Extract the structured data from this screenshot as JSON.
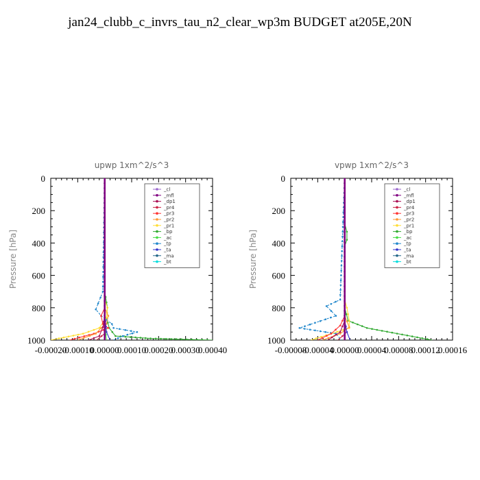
{
  "title": "jan24_clubb_c_invrs_tau_n2_clear_wp3m  BUDGET at205E,20N",
  "legend_entries": [
    {
      "name": "_cl",
      "color": "#9966cc"
    },
    {
      "name": "_mfl",
      "color": "#800080"
    },
    {
      "name": "_dp1",
      "color": "#aa1155"
    },
    {
      "name": "_pr4",
      "color": "#cc2244"
    },
    {
      "name": "_pr3",
      "color": "#ff3333"
    },
    {
      "name": "_pr2",
      "color": "#ff9933"
    },
    {
      "name": "_pr1",
      "color": "#ffdd33"
    },
    {
      "name": "_bp",
      "color": "#33aa33"
    },
    {
      "name": "_ac",
      "color": "#44dd44"
    },
    {
      "name": "_tp",
      "color": "#2288cc"
    },
    {
      "name": "_ta",
      "color": "#3333cc"
    },
    {
      "name": "_ma",
      "color": "#226688"
    },
    {
      "name": "_bt",
      "color": "#00dddd"
    }
  ],
  "chart_data": [
    {
      "type": "line",
      "title": "upwp   1xm^2/s^3",
      "ylabel": "Pressure [hPa]",
      "xlim": [
        -0.0002,
        0.0004
      ],
      "ylim": [
        1000,
        0
      ],
      "xticks": [
        "-0.00020",
        "-0.00010",
        "0.00000",
        "0.00010",
        "0.00020",
        "0.00030",
        "0.00040"
      ],
      "yticks": [
        "0",
        "200",
        "400",
        "600",
        "800",
        "1000"
      ],
      "series": [
        {
          "ref": "_bp",
          "x": [
            0,
            0,
            1e-05,
            6.7e-06,
            1.67e-05,
            4e-05,
            0.00017,
            0.0004
          ],
          "y": [
            0,
            700,
            800,
            860,
            925,
            975,
            990,
            1000
          ]
        },
        {
          "ref": "_pr1",
          "x": [
            0,
            0,
            1e-05,
            6.7e-06,
            -2e-05,
            -8e-05,
            -0.00017,
            -0.0002
          ],
          "y": [
            0,
            750,
            800,
            860,
            925,
            960,
            990,
            1000
          ]
        },
        {
          "ref": "_tp",
          "x": [
            0,
            -6.7e-06,
            -3.3e-05,
            -1.3e-05,
            2.67e-05,
            3.3e-05,
            0.00012,
            6.7e-05,
            3.3e-05
          ],
          "y": [
            0,
            700,
            810,
            850,
            900,
            925,
            950,
            975,
            1000
          ]
        },
        {
          "ref": "_pr3",
          "x": [
            0,
            0,
            -1.33e-05,
            -6.7e-06,
            1.33e-05,
            -4e-05,
            -0.00013
          ],
          "y": [
            0,
            800,
            850,
            900,
            925,
            960,
            1000
          ]
        },
        {
          "ref": "_pr2",
          "x": [
            0,
            0,
            1.33e-05,
            6.7e-06,
            -1.33e-05,
            -3.3e-05,
            -0.0001
          ],
          "y": [
            0,
            800,
            850,
            900,
            925,
            960,
            1000
          ]
        },
        {
          "ref": "_dp1",
          "x": [
            0,
            0,
            -6.7e-06,
            -2e-05,
            -6e-05
          ],
          "y": [
            0,
            850,
            920,
            975,
            1000
          ]
        },
        {
          "ref": "_pr4",
          "x": [
            0,
            0,
            6.7e-06,
            -3e-05
          ],
          "y": [
            0,
            850,
            950,
            1000
          ]
        },
        {
          "ref": "_ta",
          "x": [
            0,
            0,
            6.7e-06,
            2e-05
          ],
          "y": [
            0,
            850,
            950,
            1000
          ]
        },
        {
          "ref": "_ac",
          "x": [
            0,
            0,
            6.7e-06
          ],
          "y": [
            0,
            900,
            1000
          ]
        },
        {
          "ref": "_bt",
          "x": [
            0,
            0
          ],
          "y": [
            0,
            1000
          ]
        },
        {
          "ref": "_ma",
          "x": [
            0,
            0
          ],
          "y": [
            0,
            1000
          ]
        },
        {
          "ref": "_cl",
          "x": [
            0,
            0
          ],
          "y": [
            0,
            1000
          ]
        },
        {
          "ref": "_mfl",
          "x": [
            0,
            0
          ],
          "y": [
            0,
            1000
          ]
        }
      ]
    },
    {
      "type": "line",
      "title": "vpwp   1xm^2/s^3",
      "ylabel": "Pressure [hPa]",
      "xlim": [
        -8e-05,
        0.00016
      ],
      "ylim": [
        1000,
        0
      ],
      "xticks": [
        "-0.00008",
        "-0.00004",
        "0.00000",
        "0.00004",
        "0.00008",
        "0.00012",
        "0.00016"
      ],
      "yticks": [
        "0",
        "200",
        "400",
        "600",
        "800",
        "1000"
      ],
      "series": [
        {
          "ref": "_bp",
          "x": [
            0,
            0,
            3.3e-06,
            3.3e-06,
            0,
            0,
            5e-06,
            3.3e-05,
            0.00013
          ],
          "y": [
            0,
            280,
            330,
            380,
            420,
            800,
            880,
            925,
            1000
          ]
        },
        {
          "ref": "_tp",
          "x": [
            0,
            -6.7e-06,
            -2.7e-05,
            -1.3e-05,
            -6.7e-05,
            -1.3e-05,
            -5e-06
          ],
          "y": [
            0,
            750,
            790,
            850,
            925,
            960,
            1000
          ]
        },
        {
          "ref": "_pr1",
          "x": [
            0,
            0,
            3.3e-06,
            6.7e-06,
            6.7e-06,
            -2e-05,
            -5e-05
          ],
          "y": [
            0,
            750,
            800,
            880,
            925,
            960,
            1000
          ]
        },
        {
          "ref": "_pr3",
          "x": [
            0,
            0,
            -6.7e-06,
            -2e-05,
            -4e-05
          ],
          "y": [
            0,
            850,
            910,
            960,
            1000
          ]
        },
        {
          "ref": "_pr2",
          "x": [
            0,
            0,
            6.7e-06,
            -6.7e-06,
            -3.3e-05
          ],
          "y": [
            0,
            850,
            920,
            960,
            1000
          ]
        },
        {
          "ref": "_dp1",
          "x": [
            0,
            0,
            -6.7e-06,
            -2.5e-05
          ],
          "y": [
            0,
            880,
            950,
            1000
          ]
        },
        {
          "ref": "_pr4",
          "x": [
            0,
            0,
            3.3e-06,
            -1e-05
          ],
          "y": [
            0,
            880,
            950,
            1000
          ]
        },
        {
          "ref": "_ta",
          "x": [
            0,
            0,
            3.3e-06,
            8e-06
          ],
          "y": [
            0,
            880,
            950,
            1000
          ]
        },
        {
          "ref": "_ac",
          "x": [
            0,
            0
          ],
          "y": [
            0,
            1000
          ]
        },
        {
          "ref": "_bt",
          "x": [
            0,
            0
          ],
          "y": [
            0,
            1000
          ]
        },
        {
          "ref": "_ma",
          "x": [
            0,
            0
          ],
          "y": [
            0,
            1000
          ]
        },
        {
          "ref": "_cl",
          "x": [
            0,
            0
          ],
          "y": [
            0,
            1000
          ]
        },
        {
          "ref": "_mfl",
          "x": [
            0,
            0
          ],
          "y": [
            0,
            1000
          ]
        }
      ]
    }
  ]
}
